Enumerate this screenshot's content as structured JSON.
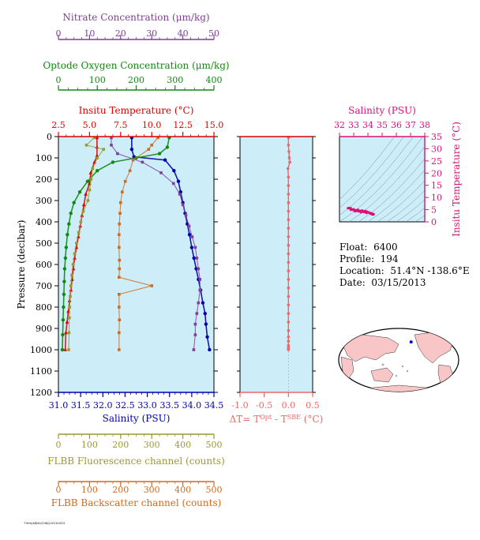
{
  "chart_data": [
    {
      "type": "line",
      "panel": "main-profile",
      "yaxis": {
        "label": "Pressure (decibar)",
        "range": [
          0,
          1200
        ],
        "reversed": true,
        "ticks": [
          0,
          100,
          200,
          300,
          400,
          500,
          600,
          700,
          800,
          900,
          1000,
          1100,
          1200
        ]
      },
      "axes": {
        "temperature": {
          "label": "Insitu Temperature (°C)",
          "range": [
            2.5,
            15.0
          ],
          "ticks": [
            "2.5",
            "5.0",
            "7.5",
            "10.0",
            "12.5",
            "15.0"
          ],
          "color": "#dd0000",
          "position": "top"
        },
        "salinity": {
          "label": "Salinity (PSU)",
          "range": [
            31.0,
            34.5
          ],
          "ticks": [
            "31.0",
            "31.5",
            "32.0",
            "32.5",
            "33.0",
            "33.5",
            "34.0",
            "34.5"
          ],
          "color": "#0000aa",
          "position": "bottom"
        },
        "nitrate": {
          "label": "Nitrate Concentration (μm/kg)",
          "range": [
            0,
            50
          ],
          "ticks": [
            "0",
            "10",
            "20",
            "30",
            "40",
            "50"
          ],
          "color": "#7f3f98",
          "position": "top"
        },
        "oxygen": {
          "label": "Optode Oxygen Concentration (μm/kg)",
          "range": [
            0,
            400
          ],
          "ticks": [
            "0",
            "100",
            "200",
            "300",
            "400"
          ],
          "color": "#118811",
          "position": "top"
        },
        "fluorescence": {
          "label": "FLBB Fluorescence channel (counts)",
          "range": [
            0,
            500
          ],
          "ticks": [
            "0",
            "100",
            "200",
            "300",
            "400",
            "500"
          ],
          "color": "#999933",
          "position": "bottom"
        },
        "backscatter": {
          "label": "FLBB Backscatter channel (counts)",
          "range": [
            0,
            500
          ],
          "ticks": [
            "0",
            "100",
            "200",
            "300",
            "400",
            "500"
          ],
          "color": "#d2691e",
          "position": "bottom"
        }
      },
      "series": [
        {
          "axis": "temperature",
          "x": [
            5.6,
            5.6,
            5.6,
            5.4,
            5.1,
            5.0,
            4.7,
            4.55,
            4.4,
            4.25,
            4.1,
            3.95,
            3.8,
            3.7,
            3.6,
            3.5,
            3.4,
            3.3,
            3.2,
            3.1,
            3.05
          ],
          "y": [
            5,
            50,
            90,
            120,
            170,
            220,
            270,
            320,
            370,
            420,
            470,
            520,
            570,
            620,
            670,
            720,
            770,
            820,
            870,
            920,
            1000
          ]
        },
        {
          "axis": "salinity",
          "x": [
            32.65,
            32.65,
            32.7,
            33.4,
            33.6,
            33.7,
            33.75,
            33.8,
            33.85,
            33.9,
            33.95,
            34.0,
            34.05,
            34.1,
            34.15,
            34.2,
            34.25,
            34.3,
            34.32,
            34.35,
            34.4
          ],
          "y": [
            5,
            60,
            95,
            110,
            160,
            210,
            260,
            310,
            360,
            410,
            460,
            520,
            570,
            620,
            670,
            720,
            780,
            830,
            880,
            940,
            1000
          ]
        },
        {
          "axis": "oxygen",
          "x": [
            285,
            280,
            260,
            200,
            140,
            100,
            75,
            55,
            40,
            32,
            27,
            23,
            20,
            18,
            16,
            15,
            14,
            13,
            12,
            11,
            10
          ],
          "y": [
            5,
            50,
            80,
            100,
            120,
            160,
            210,
            260,
            310,
            360,
            410,
            460,
            520,
            570,
            620,
            680,
            740,
            800,
            860,
            930,
            1000
          ]
        },
        {
          "axis": "nitrate",
          "x": [
            17,
            17,
            19,
            27,
            33,
            37,
            39,
            40,
            41,
            42,
            43,
            44,
            44.5,
            45,
            45.5,
            45.5,
            45,
            44.5,
            44,
            44,
            43.5
          ],
          "y": [
            5,
            40,
            80,
            120,
            170,
            220,
            270,
            320,
            370,
            420,
            470,
            520,
            570,
            620,
            670,
            720,
            780,
            830,
            880,
            930,
            1000
          ]
        },
        {
          "axis": "fluorescence",
          "x": [
            115,
            90,
            145,
            125,
            110,
            105,
            100,
            95,
            80,
            72,
            65,
            58,
            52,
            47,
            43,
            40,
            38,
            36,
            35,
            34,
            33
          ],
          "y": [
            5,
            40,
            60,
            100,
            150,
            200,
            250,
            300,
            350,
            400,
            450,
            500,
            550,
            600,
            650,
            700,
            750,
            800,
            850,
            920,
            1000
          ]
        },
        {
          "axis": "backscatter",
          "x": [
            320,
            300,
            290,
            240,
            230,
            215,
            205,
            200,
            198,
            196,
            195,
            195,
            196,
            196,
            195,
            300,
            195,
            195,
            196,
            195,
            195
          ],
          "y": [
            5,
            40,
            60,
            110,
            160,
            210,
            260,
            310,
            360,
            410,
            460,
            520,
            580,
            620,
            660,
            700,
            740,
            800,
            860,
            920,
            1000
          ]
        }
      ]
    },
    {
      "type": "line",
      "panel": "delta-t",
      "xaxis": {
        "label": "ΔT= T",
        "label_sup1": "Opt",
        "label_mid": " - T",
        "label_sup2": "SBE",
        "label_tail": " (°C)",
        "range": [
          -1.0,
          0.5
        ],
        "ticks": [
          "-1.0",
          "-0.5",
          "0.0",
          "0.5"
        ],
        "color": "#ee6666"
      },
      "series": [
        {
          "x": [
            0.0,
            0.0,
            0.01,
            0.02,
            0.03,
            -0.01,
            0.0,
            0.0,
            0.0,
            0.0,
            0.0,
            0.0,
            0.0,
            0.0,
            0.0,
            0.0,
            0.0,
            0.0,
            0.0,
            0.0,
            0.0,
            0.0,
            0.0,
            0.0,
            0.0,
            0.0,
            0.0,
            0.0,
            0.0,
            0.0,
            0.0
          ],
          "y": [
            5,
            40,
            70,
            100,
            120,
            150,
            190,
            230,
            270,
            310,
            350,
            390,
            430,
            470,
            510,
            550,
            590,
            630,
            670,
            710,
            750,
            790,
            830,
            870,
            910,
            940,
            960,
            980,
            990,
            995,
            1000
          ]
        }
      ]
    },
    {
      "type": "scatter",
      "panel": "ts-diagram",
      "xaxis": {
        "label": "Salinity (PSU)",
        "range": [
          32,
          38
        ],
        "ticks": [
          "32",
          "33",
          "34",
          "35",
          "36",
          "37",
          "38"
        ]
      },
      "yaxis": {
        "label": "Insitu Temperature (°C)",
        "range": [
          0,
          35
        ],
        "ticks": [
          "0",
          "5",
          "10",
          "15",
          "20",
          "25",
          "30",
          "35"
        ]
      },
      "color": "#dd1177",
      "series": [
        {
          "x": [
            32.6,
            32.7,
            32.8,
            33.0,
            33.3,
            33.6,
            33.8,
            33.9,
            34.0,
            34.1,
            34.2,
            34.3,
            34.4,
            34.4,
            34.3,
            34.2,
            33.9,
            33.5,
            33.1,
            32.8,
            32.6
          ],
          "y": [
            5.6,
            5.7,
            5.6,
            5.2,
            5.0,
            4.7,
            4.5,
            4.3,
            4.0,
            3.8,
            3.6,
            3.4,
            3.2,
            3.0,
            3.0,
            3.3,
            3.6,
            3.9,
            4.3,
            4.9,
            5.6
          ]
        }
      ]
    }
  ],
  "info": {
    "float_label": "Float:",
    "float_value": "6400",
    "profile_label": "Profile:",
    "profile_value": "194",
    "location_label": "Location:",
    "location_value": "51.4°N  -138.6°E",
    "date_label": "Date:",
    "date_value": "03/15/2013"
  },
  "map": {
    "marker_lat": 51.4,
    "marker_lon": -138.6
  },
  "footer": {
    "code": "7900/6400/194/20130315"
  }
}
